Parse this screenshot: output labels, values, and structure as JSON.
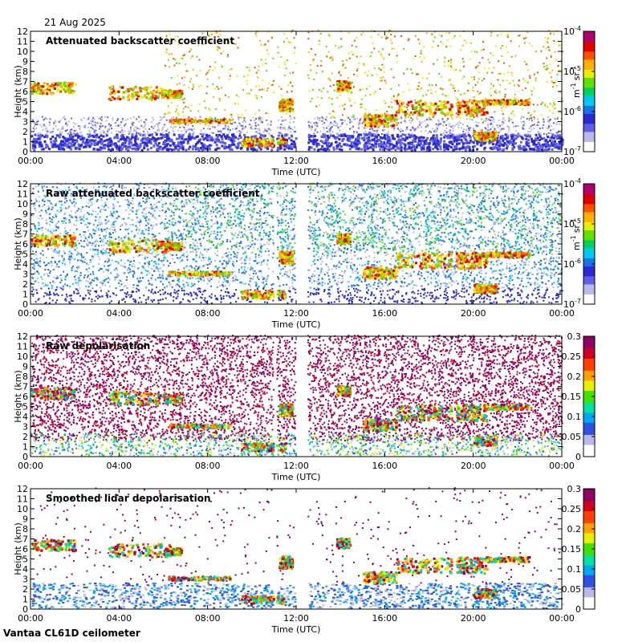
{
  "date": "21 Aug 2025",
  "footer": "Vantaa CL61D ceilometer",
  "chart_data": [
    {
      "type": "heatmap",
      "title": "Attenuated backscatter coefficient",
      "xlabel": "Time (UTC)",
      "ylabel": "Height (km)",
      "xticks": [
        "00:00",
        "04:00",
        "08:00",
        "12:00",
        "16:00",
        "20:00",
        "00:00"
      ],
      "yticks": [
        0,
        1,
        2,
        3,
        4,
        5,
        6,
        7,
        8,
        9,
        10,
        11,
        12
      ],
      "ylim": [
        0,
        12
      ],
      "colorbar": {
        "scale": "log",
        "ticks": [
          {
            "base": "10",
            "exp": "-7"
          },
          {
            "base": "10",
            "exp": "-6"
          },
          {
            "base": "10",
            "exp": "-5"
          },
          {
            "base": "10",
            "exp": "-4"
          }
        ],
        "unit": {
          "m": "m",
          "m_exp": "-1",
          "sr": "sr",
          "sr_exp": "-1"
        }
      }
    },
    {
      "type": "heatmap",
      "title": "Raw attenuated backscatter coefficient",
      "xlabel": "Time (UTC)",
      "ylabel": "Height (km)",
      "xticks": [
        "00:00",
        "04:00",
        "08:00",
        "12:00",
        "16:00",
        "20:00",
        "00:00"
      ],
      "yticks": [
        0,
        1,
        2,
        3,
        4,
        5,
        6,
        7,
        8,
        9,
        10,
        11,
        12
      ],
      "ylim": [
        0,
        12
      ],
      "colorbar": {
        "scale": "log",
        "ticks": [
          {
            "base": "10",
            "exp": "-7"
          },
          {
            "base": "10",
            "exp": "-6"
          },
          {
            "base": "10",
            "exp": "-5"
          },
          {
            "base": "10",
            "exp": "-4"
          }
        ],
        "unit": {
          "m": "m",
          "m_exp": "-1",
          "sr": "sr",
          "sr_exp": "-1"
        }
      }
    },
    {
      "type": "heatmap",
      "title": "Raw depolarisation",
      "xlabel": "Time (UTC)",
      "ylabel": "Height (km)",
      "xticks": [
        "00:00",
        "04:00",
        "08:00",
        "12:00",
        "16:00",
        "20:00",
        "00:00"
      ],
      "yticks": [
        0,
        1,
        2,
        3,
        4,
        5,
        6,
        7,
        8,
        9,
        10,
        11,
        12
      ],
      "ylim": [
        0,
        12
      ],
      "colorbar": {
        "scale": "linear",
        "ticks": [
          "0",
          "0.05",
          "0.1",
          "0.15",
          "0.2",
          "0.25",
          "0.3"
        ],
        "range": [
          0,
          0.3
        ]
      }
    },
    {
      "type": "heatmap",
      "title": "Smoothed lidar depolarisation",
      "xlabel": "Time (UTC)",
      "ylabel": "Height (km)",
      "xticks": [
        "00:00",
        "04:00",
        "08:00",
        "12:00",
        "16:00",
        "20:00",
        "00:00"
      ],
      "yticks": [
        0,
        1,
        2,
        3,
        4,
        5,
        6,
        7,
        8,
        9,
        10,
        11,
        12
      ],
      "ylim": [
        0,
        12
      ],
      "colorbar": {
        "scale": "linear",
        "ticks": [
          "0",
          "0.05",
          "0.1",
          "0.15",
          "0.2",
          "0.25",
          "0.3"
        ],
        "range": [
          0,
          0.3
        ]
      }
    }
  ],
  "data_gaps_hours": [
    [
      10.95,
      11.1
    ],
    [
      11.95,
      12.5
    ]
  ],
  "colors": {
    "colormap_backscatter": [
      "#ffffff",
      "#b8b8ec",
      "#6060e6",
      "#2a2ad0",
      "#1a72e8",
      "#00c8f0",
      "#00d060",
      "#60e000",
      "#e8f000",
      "#ffb000",
      "#ff5000",
      "#e00000",
      "#b00070"
    ],
    "colormap_depol": [
      "#ffffff",
      "#b8b8ec",
      "#3050e0",
      "#00a8f0",
      "#00e0a0",
      "#40e000",
      "#e8f000",
      "#ffa000",
      "#ff4000",
      "#d00020",
      "#900060"
    ]
  }
}
